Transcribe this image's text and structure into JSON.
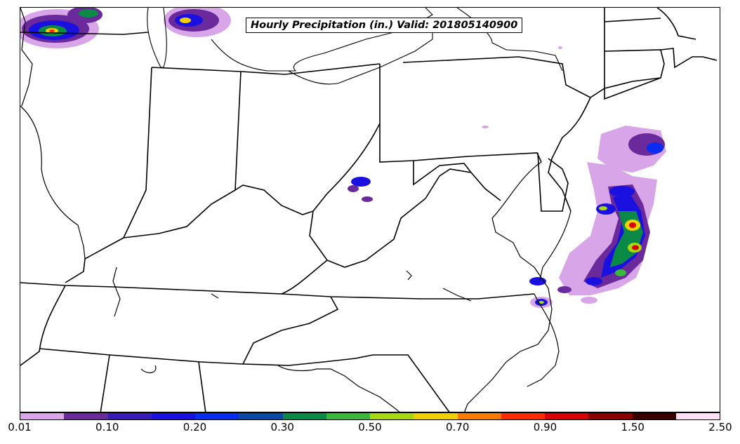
{
  "title": "Hourly Precipitation (in.) Valid: 201805140900",
  "colorbar": {
    "colors": [
      "#d8a6e8",
      "#6a2a9c",
      "#3a1ab8",
      "#1a10e0",
      "#0a2cf0",
      "#0a4aa6",
      "#0a8a46",
      "#3ab83a",
      "#a8d810",
      "#f0d000",
      "#ff7a00",
      "#ff2a00",
      "#d80000",
      "#8a0000",
      "#3a0000",
      "#ffe0f8"
    ],
    "tick_labels": [
      "0.01",
      "0.10",
      "0.20",
      "0.30",
      "0.50",
      "0.70",
      "0.90",
      "1.50",
      "2.50"
    ]
  }
}
